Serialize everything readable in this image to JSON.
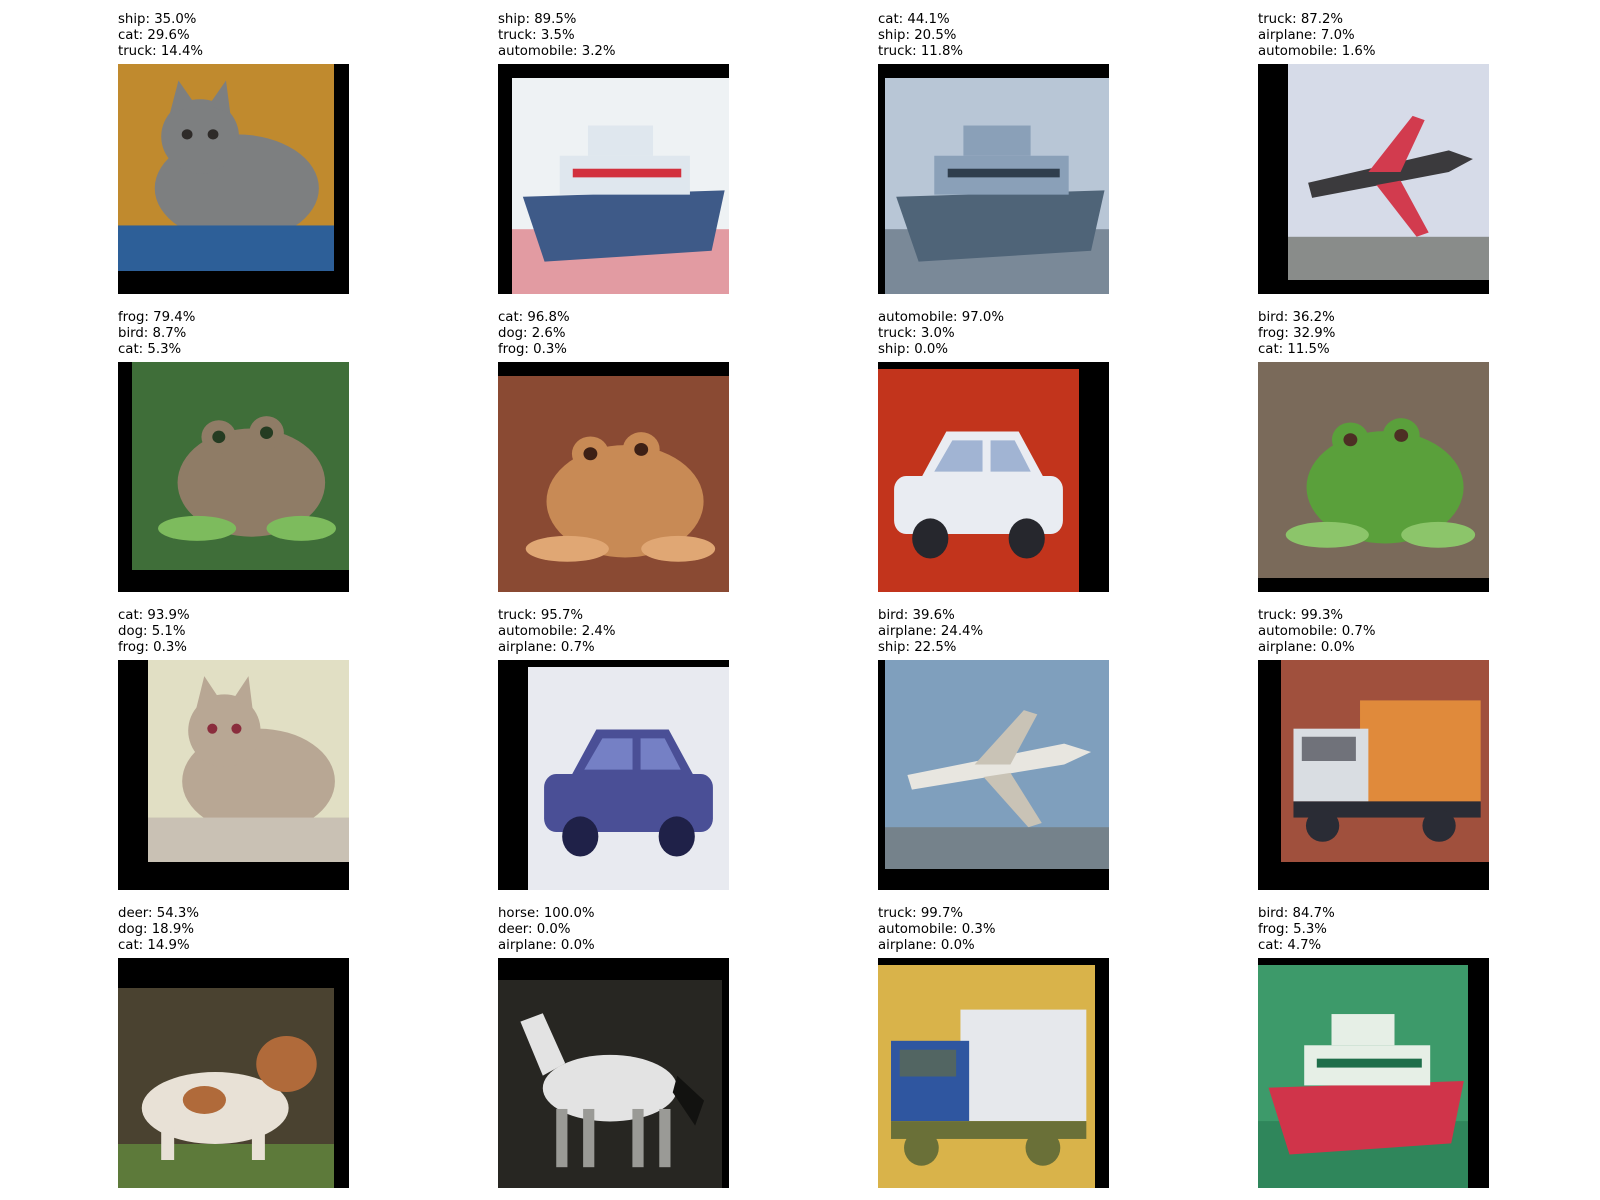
{
  "figure": {
    "panels": [
      {
        "subject": "cat",
        "predictions": [
          "ship: 35.0%",
          "cat: 29.6%",
          "truck: 14.4%"
        ],
        "colors": {
          "bg": "#c08a2e",
          "main": "#7d7f80",
          "accent": "#2d5f98",
          "dark": "#2e2b29"
        }
      },
      {
        "subject": "ship",
        "predictions": [
          "ship: 89.5%",
          "truck: 3.5%",
          "automobile: 3.2%"
        ],
        "colors": {
          "bg": "#eef2f4",
          "main": "#dfe7ee",
          "accent": "#3e5a88",
          "dark": "#d2313e"
        }
      },
      {
        "subject": "ship",
        "predictions": [
          "cat: 44.1%",
          "ship: 20.5%",
          "truck: 11.8%"
        ],
        "colors": {
          "bg": "#b8c6d6",
          "main": "#8aa0b8",
          "accent": "#4f6478",
          "dark": "#2f3e4d"
        }
      },
      {
        "subject": "airplane",
        "predictions": [
          "truck: 87.2%",
          "airplane: 7.0%",
          "automobile: 1.6%"
        ],
        "colors": {
          "bg": "#d6dbe8",
          "main": "#3b3a3d",
          "accent": "#d23b4e",
          "dark": "#4a4a3d"
        }
      },
      {
        "subject": "frog",
        "predictions": [
          "frog: 79.4%",
          "bird: 8.7%",
          "cat: 5.3%"
        ],
        "colors": {
          "bg": "#3f6e39",
          "main": "#8f7c66",
          "accent": "#7dbb5d",
          "dark": "#253c22"
        }
      },
      {
        "subject": "frog",
        "predictions": [
          "cat: 96.8%",
          "dog: 2.6%",
          "frog: 0.3%"
        ],
        "colors": {
          "bg": "#8a4a33",
          "main": "#c88a55",
          "accent": "#e0a774",
          "dark": "#3d2015"
        }
      },
      {
        "subject": "automobile",
        "predictions": [
          "automobile: 97.0%",
          "truck: 3.0%",
          "ship: 0.0%"
        ],
        "colors": {
          "bg": "#c2341c",
          "main": "#e9ecf2",
          "accent": "#a1b4d3",
          "dark": "#26272d"
        }
      },
      {
        "subject": "frog",
        "predictions": [
          "bird: 36.2%",
          "frog: 32.9%",
          "cat: 11.5%"
        ],
        "colors": {
          "bg": "#7a6a5a",
          "main": "#5aa03b",
          "accent": "#8cc56a",
          "dark": "#4d2f24"
        }
      },
      {
        "subject": "cat",
        "predictions": [
          "cat: 93.9%",
          "dog: 5.1%",
          "frog: 0.3%"
        ],
        "colors": {
          "bg": "#e1dfc4",
          "main": "#b8a794",
          "accent": "#c9c1b4",
          "dark": "#8a2d3d"
        }
      },
      {
        "subject": "automobile",
        "predictions": [
          "truck: 95.7%",
          "automobile: 2.4%",
          "airplane: 0.7%"
        ],
        "colors": {
          "bg": "#e8eaf0",
          "main": "#4a4f96",
          "accent": "#7580c5",
          "dark": "#1f2148"
        }
      },
      {
        "subject": "airplane",
        "predictions": [
          "bird: 39.6%",
          "airplane: 24.4%",
          "ship: 22.5%"
        ],
        "colors": {
          "bg": "#7f9fbd",
          "main": "#e8e6e0",
          "accent": "#c9c3b6",
          "dark": "#6e6a63"
        }
      },
      {
        "subject": "truck",
        "predictions": [
          "truck: 99.3%",
          "automobile: 0.7%",
          "airplane: 0.0%"
        ],
        "colors": {
          "bg": "#a0503d",
          "main": "#d9dde2",
          "accent": "#e08a3b",
          "dark": "#2a2c35"
        }
      },
      {
        "subject": "dog",
        "predictions": [
          "deer: 54.3%",
          "dog: 18.9%",
          "cat: 14.9%"
        ],
        "colors": {
          "bg": "#4a4230",
          "main": "#e8e1d6",
          "accent": "#b06a3a",
          "dark": "#5d7a3a"
        }
      },
      {
        "subject": "horse",
        "predictions": [
          "horse: 100.0%",
          "deer: 0.0%",
          "airplane: 0.0%"
        ],
        "colors": {
          "bg": "#272622",
          "main": "#e3e3e3",
          "accent": "#9a9a96",
          "dark": "#121210"
        }
      },
      {
        "subject": "truck",
        "predictions": [
          "truck: 99.7%",
          "automobile: 0.3%",
          "airplane: 0.0%"
        ],
        "colors": {
          "bg": "#d9b34a",
          "main": "#2f56a0",
          "accent": "#e6e8ec",
          "dark": "#6a7038"
        }
      },
      {
        "subject": "ship",
        "predictions": [
          "bird: 84.7%",
          "frog: 5.3%",
          "cat: 4.7%"
        ],
        "colors": {
          "bg": "#3d9a6a",
          "main": "#e6efe6",
          "accent": "#d0344a",
          "dark": "#1e6e4a"
        }
      }
    ]
  }
}
